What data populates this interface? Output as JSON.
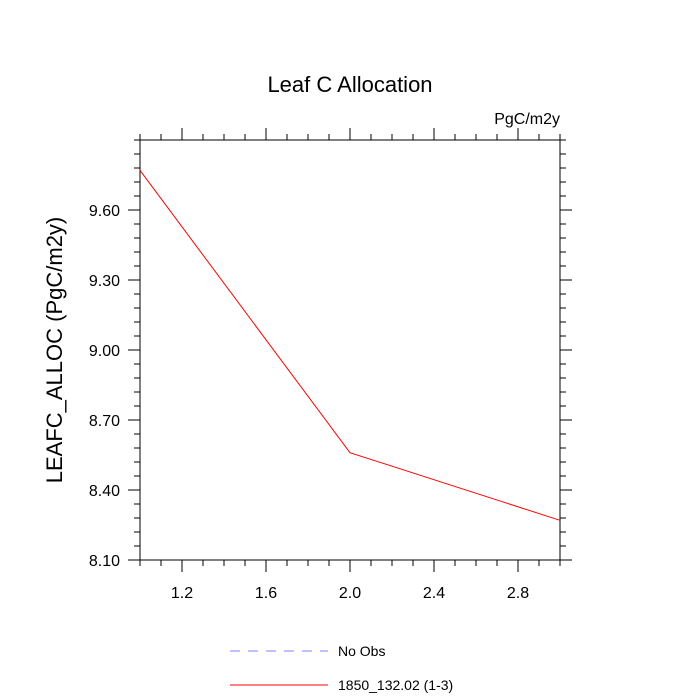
{
  "chart_data": {
    "type": "line",
    "title": "Leaf C Allocation",
    "units_label": "PgC/m2y",
    "ylabel": "LEAFC_ALLOC  (PgC/m2y)",
    "xlabel": "",
    "xlim": [
      1.0,
      3.0
    ],
    "ylim": [
      8.1,
      9.9
    ],
    "x_ticks": [
      1.2,
      1.6,
      2.0,
      2.4,
      2.8
    ],
    "x_tick_labels": [
      "1.2",
      "1.6",
      "2.0",
      "2.4",
      "2.8"
    ],
    "y_ticks": [
      8.1,
      8.4,
      8.7,
      9.0,
      9.3,
      9.6
    ],
    "y_tick_labels": [
      "8.10",
      "8.40",
      "8.70",
      "9.00",
      "9.30",
      "9.60"
    ],
    "grid": false,
    "legend_position": "bottom-center",
    "series": [
      {
        "name": "No Obs",
        "color": "#8080ff",
        "dash": "dashed",
        "x": [],
        "y": []
      },
      {
        "name": "1850_132.02 (1-3)",
        "color": "#ff0000",
        "dash": "solid",
        "x": [
          1.0,
          2.0,
          3.0
        ],
        "y": [
          9.77,
          8.56,
          8.27
        ]
      }
    ]
  }
}
